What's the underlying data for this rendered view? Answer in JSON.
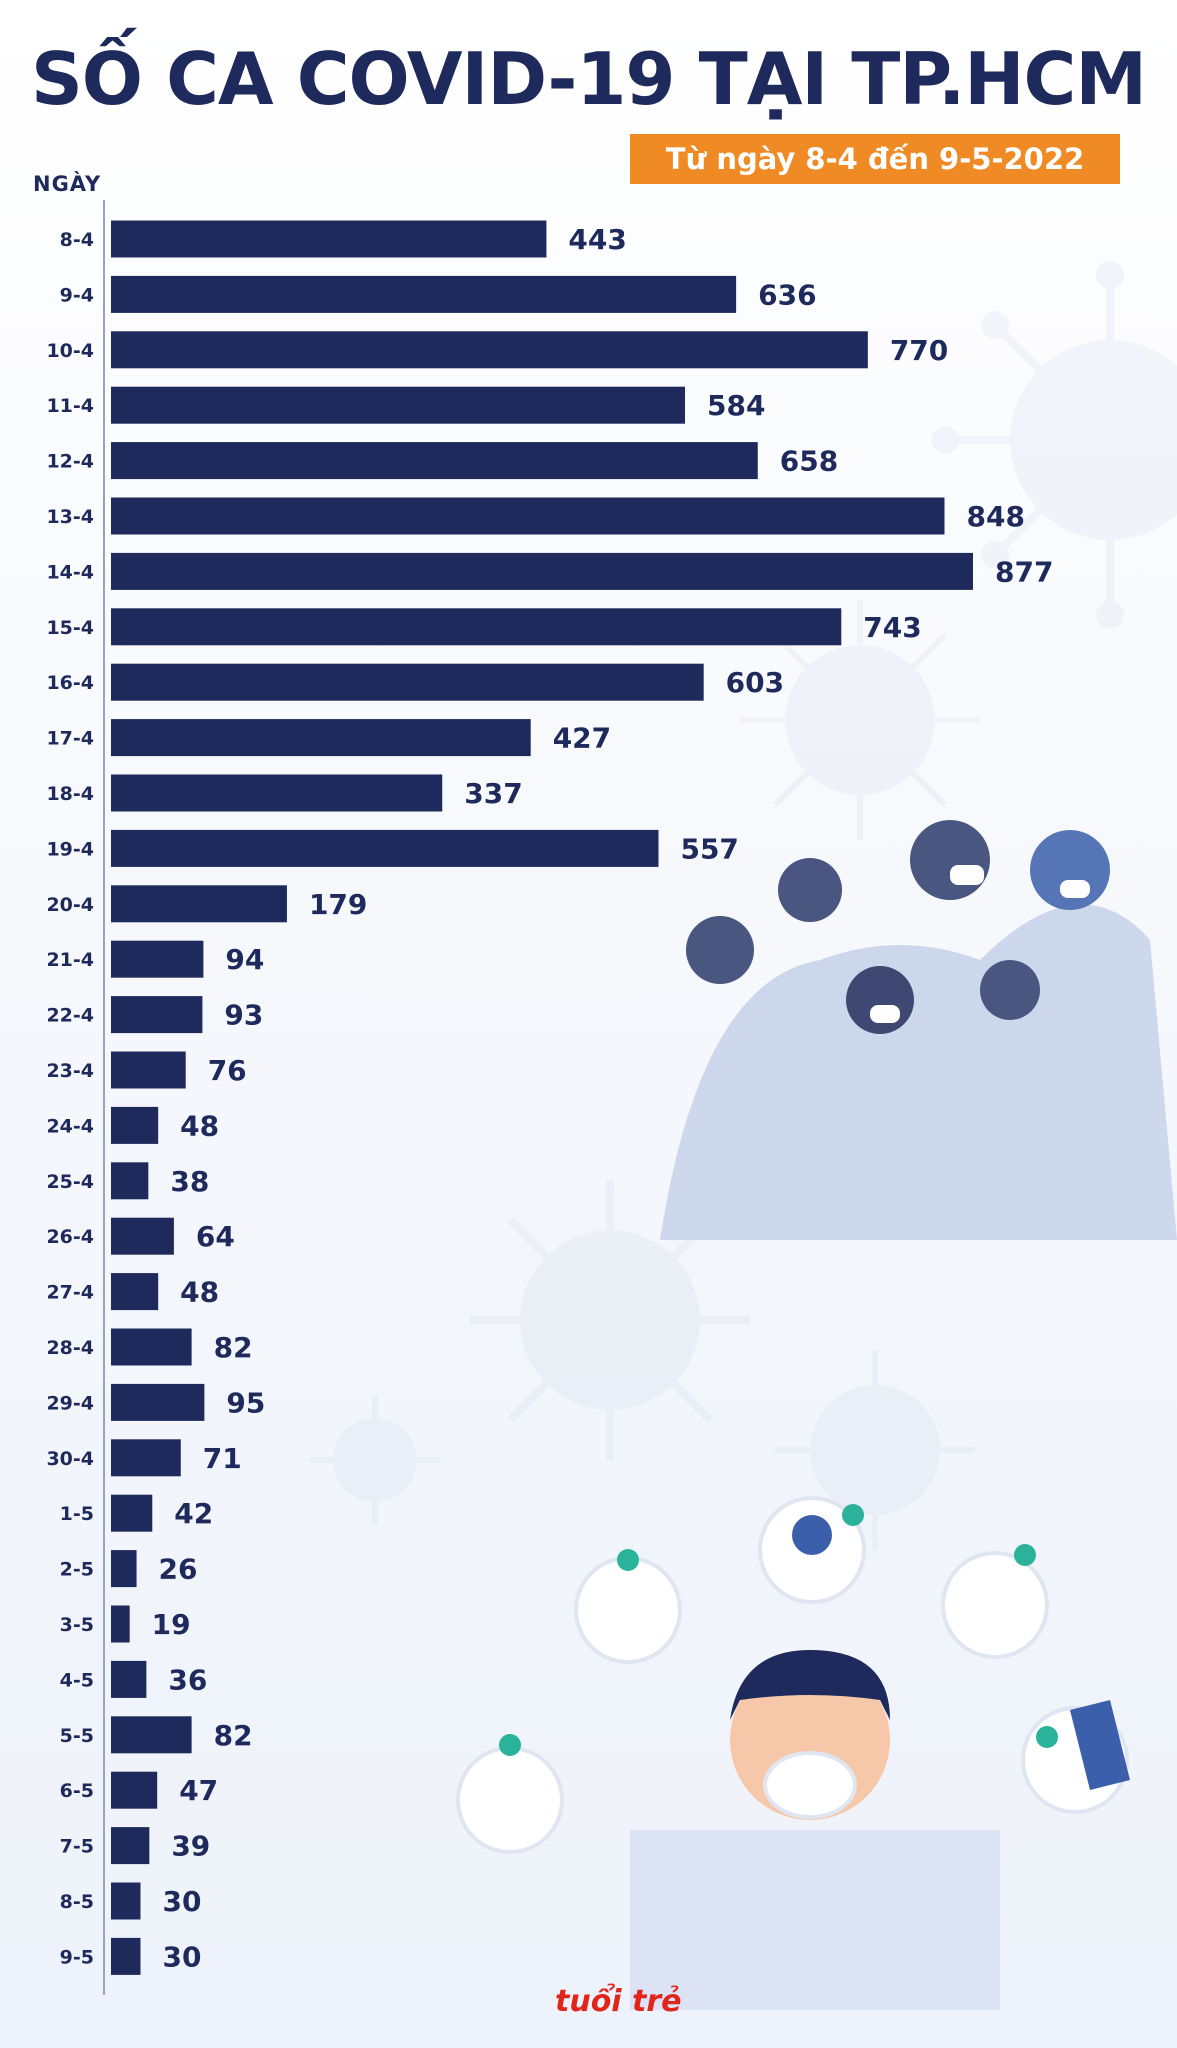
{
  "title": "SỐ CA COVID-19 TẠI TP.HCM",
  "subtitle": "Từ ngày 8-4 đến 9-5-2022",
  "logo_text": "tuổi trẻ",
  "colors": {
    "bar": "#1f2a5c",
    "accent": "#f08a24",
    "background": "#ffffff"
  },
  "chart_data": {
    "type": "bar",
    "orientation": "horizontal",
    "ylabel": "NGÀY",
    "categories": [
      "8-4",
      "9-4",
      "10-4",
      "11-4",
      "12-4",
      "13-4",
      "14-4",
      "15-4",
      "16-4",
      "17-4",
      "18-4",
      "19-4",
      "20-4",
      "21-4",
      "22-4",
      "23-4",
      "24-4",
      "25-4",
      "26-4",
      "27-4",
      "28-4",
      "29-4",
      "30-4",
      "1-5",
      "2-5",
      "3-5",
      "4-5",
      "5-5",
      "6-5",
      "7-5",
      "8-5",
      "9-5"
    ],
    "values": [
      443,
      636,
      770,
      584,
      658,
      848,
      877,
      743,
      603,
      427,
      337,
      557,
      179,
      94,
      93,
      76,
      48,
      38,
      64,
      48,
      82,
      95,
      71,
      42,
      26,
      19,
      36,
      82,
      47,
      39,
      30,
      30
    ],
    "data_labels": true,
    "grid": false
  }
}
